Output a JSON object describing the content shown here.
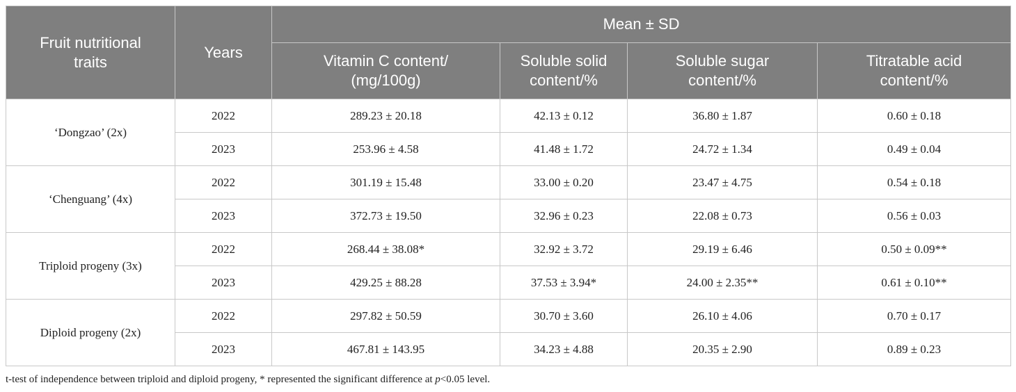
{
  "table": {
    "header": {
      "trait": "Fruit nutritional traits",
      "years": "Years",
      "group": "Mean ± SD",
      "columns": [
        "Vitamin C content/ (mg/100g)",
        "Soluble solid content/%",
        "Soluble sugar content/%",
        "Titratable acid content/%"
      ]
    },
    "rows": [
      {
        "label": "‘Dongzao’ (2x)",
        "years": [
          {
            "year": 2022,
            "values": [
              "289.23 ± 20.18",
              "42.13 ± 0.12",
              "36.80 ± 1.87",
              "0.60 ± 0.18"
            ]
          },
          {
            "year": 2023,
            "values": [
              "253.96 ± 4.58",
              "41.48 ± 1.72",
              "24.72 ± 1.34",
              "0.49 ± 0.04"
            ]
          }
        ]
      },
      {
        "label": "‘Chenguang’ (4x)",
        "years": [
          {
            "year": 2022,
            "values": [
              "301.19 ± 15.48",
              "33.00 ± 0.20",
              "23.47 ± 4.75",
              "0.54 ± 0.18"
            ]
          },
          {
            "year": 2023,
            "values": [
              "372.73 ± 19.50",
              "32.96 ± 0.23",
              "22.08 ± 0.73",
              "0.56 ± 0.03"
            ]
          }
        ]
      },
      {
        "label": "Triploid progeny (3x)",
        "years": [
          {
            "year": 2022,
            "values": [
              "268.44 ± 38.08*",
              "32.92 ± 3.72",
              "29.19 ± 6.46",
              "0.50 ± 0.09**"
            ]
          },
          {
            "year": 2023,
            "values": [
              "429.25 ± 88.28",
              "37.53 ± 3.94*",
              "24.00 ± 2.35**",
              "0.61 ± 0.10**"
            ]
          }
        ]
      },
      {
        "label": "Diploid progeny (2x)",
        "years": [
          {
            "year": 2022,
            "values": [
              "297.82 ± 50.59",
              "30.70 ± 3.60",
              "26.10 ± 4.06",
              "0.70 ± 0.17"
            ]
          },
          {
            "year": 2023,
            "values": [
              "467.81 ± 143.95",
              "34.23 ± 4.88",
              "20.35 ± 2.90",
              "0.89 ± 0.23"
            ]
          }
        ]
      }
    ]
  },
  "footnote": [
    "t-test of independence between triploid and diploid progeny, * represented the significant difference at ",
    "p",
    "<0.05 level."
  ]
}
